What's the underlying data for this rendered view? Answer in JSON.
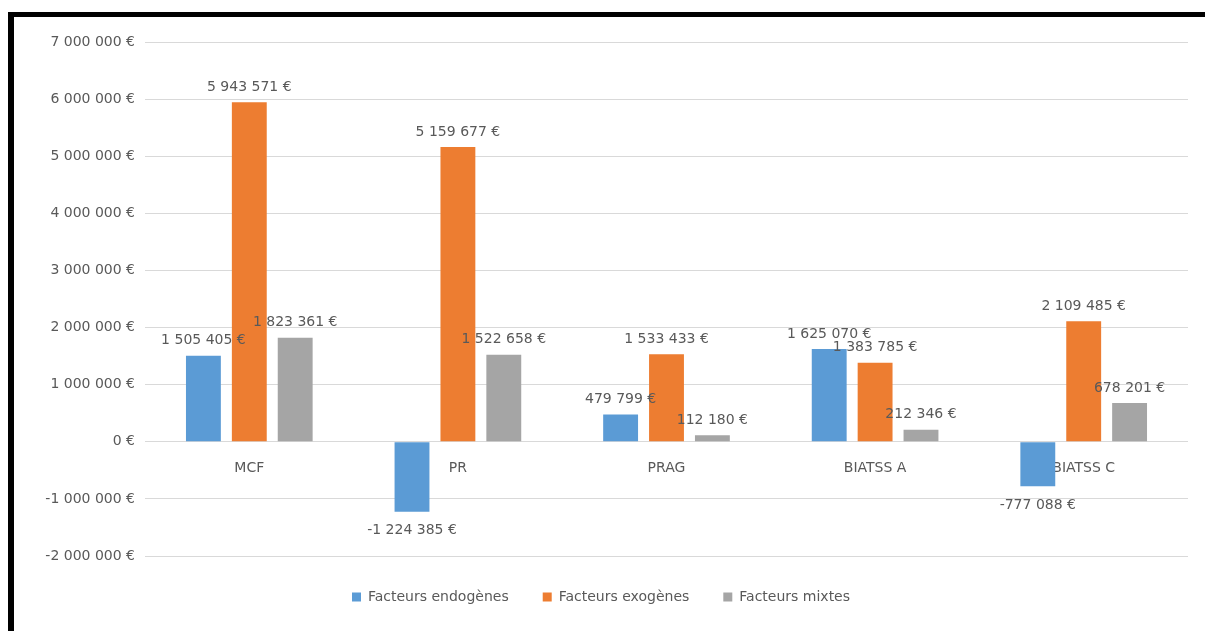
{
  "chart_data": {
    "type": "bar",
    "categories": [
      "MCF",
      "PR",
      "PRAG",
      "BIATSS A",
      "BIATSS C"
    ],
    "series": [
      {
        "name": "Facteurs endogènes",
        "color": "#5b9bd5",
        "values": [
          1505405,
          -1224385,
          479799,
          1625070,
          -777088
        ],
        "value_labels": [
          "1 505 405 €",
          "-1 224 385 €",
          "479 799 €",
          "1 625 070 €",
          "-777 088 €"
        ]
      },
      {
        "name": "Facteurs exogènes",
        "color": "#ed7d31",
        "values": [
          5943571,
          5159677,
          1533433,
          1383785,
          2109485
        ],
        "value_labels": [
          "5 943 571 €",
          "5 159 677 €",
          "1 533 433 €",
          "1 383 785 €",
          "2 109 485 €"
        ]
      },
      {
        "name": "Facteurs mixtes",
        "color": "#a5a5a5",
        "values": [
          1823361,
          1522658,
          112180,
          212346,
          678201
        ],
        "value_labels": [
          "1 823 361 €",
          "1 522 658 €",
          "112 180 €",
          "212 346 €",
          "678 201 €"
        ]
      }
    ],
    "ylim": [
      -2000000,
      7000000
    ],
    "yticks": [
      {
        "value": -2000000,
        "label": "-2 000 000 €"
      },
      {
        "value": -1000000,
        "label": "-1 000 000 €"
      },
      {
        "value": 0,
        "label": "0 €"
      },
      {
        "value": 1000000,
        "label": "1 000 000 €"
      },
      {
        "value": 2000000,
        "label": "2 000 000 €"
      },
      {
        "value": 3000000,
        "label": "3 000 000 €"
      },
      {
        "value": 4000000,
        "label": "4 000 000 €"
      },
      {
        "value": 5000000,
        "label": "5 000 000 €"
      },
      {
        "value": 6000000,
        "label": "6 000 000 €"
      },
      {
        "value": 7000000,
        "label": "7 000 000 €"
      }
    ],
    "grid": "y",
    "legend": "bottom"
  }
}
